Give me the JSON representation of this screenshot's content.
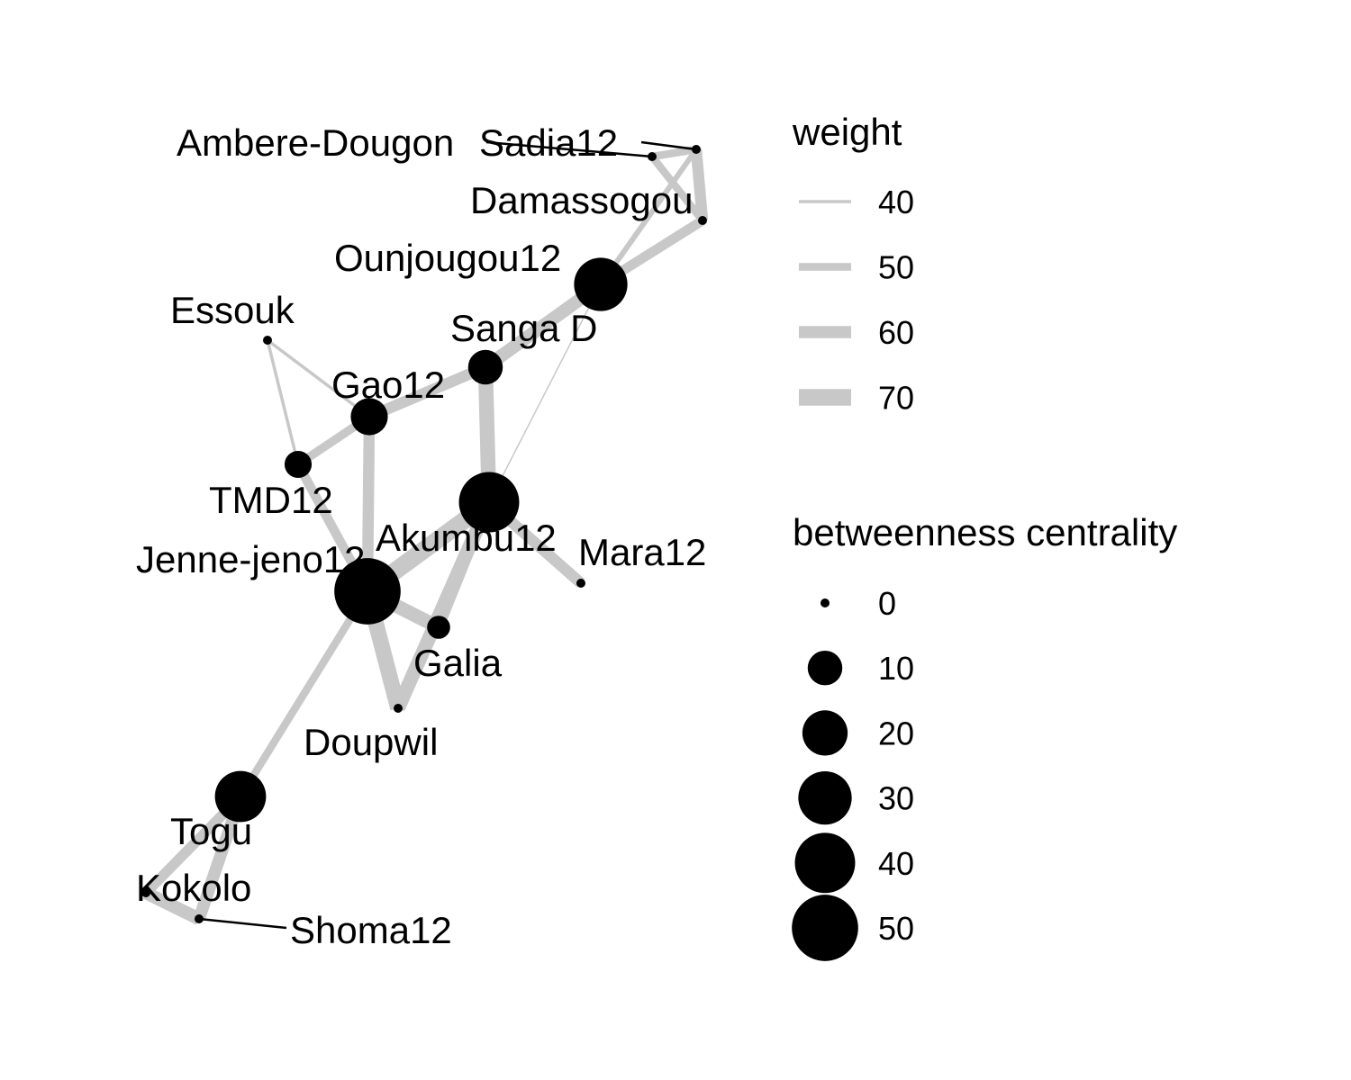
{
  "colors": {
    "edge": "#c8c8c8",
    "node": "#000000",
    "leader": "#000000",
    "background": "#ffffff"
  },
  "nodes": [
    {
      "id": "ambere",
      "label": "Ambere-Dougon",
      "betweenness": 0
    },
    {
      "id": "sadia",
      "label": "Sadia12",
      "betweenness": 0
    },
    {
      "id": "damassogou",
      "label": "Damassogou",
      "betweenness": 0
    },
    {
      "id": "ounjougou",
      "label": "Ounjougou12",
      "betweenness": 30
    },
    {
      "id": "essouk",
      "label": "Essouk",
      "betweenness": 0
    },
    {
      "id": "sanga",
      "label": "Sanga D",
      "betweenness": 10
    },
    {
      "id": "gao",
      "label": "Gao12",
      "betweenness": 12
    },
    {
      "id": "tmd",
      "label": "TMD12",
      "betweenness": 5
    },
    {
      "id": "akumbu",
      "label": "Akumbu12",
      "betweenness": 40
    },
    {
      "id": "mara",
      "label": "Mara12",
      "betweenness": 0
    },
    {
      "id": "jenne",
      "label": "Jenne-jeno12",
      "betweenness": 50
    },
    {
      "id": "galia",
      "label": "Galia",
      "betweenness": 3
    },
    {
      "id": "doupwil",
      "label": "Doupwil",
      "betweenness": 0
    },
    {
      "id": "togu",
      "label": "Togu",
      "betweenness": 27
    },
    {
      "id": "kokolo",
      "label": "Kokolo",
      "betweenness": 0
    },
    {
      "id": "shoma",
      "label": "Shoma12",
      "betweenness": 0
    }
  ],
  "edges": [
    {
      "source": "ambere",
      "target": "sadia",
      "weight": 50
    },
    {
      "source": "ambere",
      "target": "damassogou",
      "weight": 50
    },
    {
      "source": "sadia",
      "target": "damassogou",
      "weight": 58
    },
    {
      "source": "sadia",
      "target": "ounjougou",
      "weight": 45
    },
    {
      "source": "damassogou",
      "target": "ounjougou",
      "weight": 55
    },
    {
      "source": "damassogou",
      "target": "sanga",
      "weight": 38
    },
    {
      "source": "ounjougou",
      "target": "sanga",
      "weight": 62
    },
    {
      "source": "ounjougou",
      "target": "akumbu",
      "weight": 36
    },
    {
      "source": "sanga",
      "target": "gao",
      "weight": 58
    },
    {
      "source": "sanga",
      "target": "akumbu",
      "weight": 66
    },
    {
      "source": "gao",
      "target": "tmd",
      "weight": 52
    },
    {
      "source": "gao",
      "target": "essouk",
      "weight": 40
    },
    {
      "source": "gao",
      "target": "jenne",
      "weight": 58
    },
    {
      "source": "essouk",
      "target": "tmd",
      "weight": 40
    },
    {
      "source": "tmd",
      "target": "jenne",
      "weight": 54
    },
    {
      "source": "akumbu",
      "target": "jenne",
      "weight": 72
    },
    {
      "source": "akumbu",
      "target": "mara",
      "weight": 58
    },
    {
      "source": "akumbu",
      "target": "galia",
      "weight": 56
    },
    {
      "source": "akumbu",
      "target": "doupwil",
      "weight": 64
    },
    {
      "source": "jenne",
      "target": "galia",
      "weight": 64
    },
    {
      "source": "jenne",
      "target": "doupwil",
      "weight": 68
    },
    {
      "source": "jenne",
      "target": "togu",
      "weight": 50
    },
    {
      "source": "togu",
      "target": "kokolo",
      "weight": 56
    },
    {
      "source": "togu",
      "target": "shoma",
      "weight": 60
    },
    {
      "source": "kokolo",
      "target": "shoma",
      "weight": 62
    }
  ],
  "legend": {
    "weight": {
      "title": "weight",
      "values": [
        40,
        50,
        60,
        70
      ]
    },
    "betweenness": {
      "title": "betweenness centrality",
      "values": [
        0,
        10,
        20,
        30,
        40,
        50
      ]
    }
  }
}
